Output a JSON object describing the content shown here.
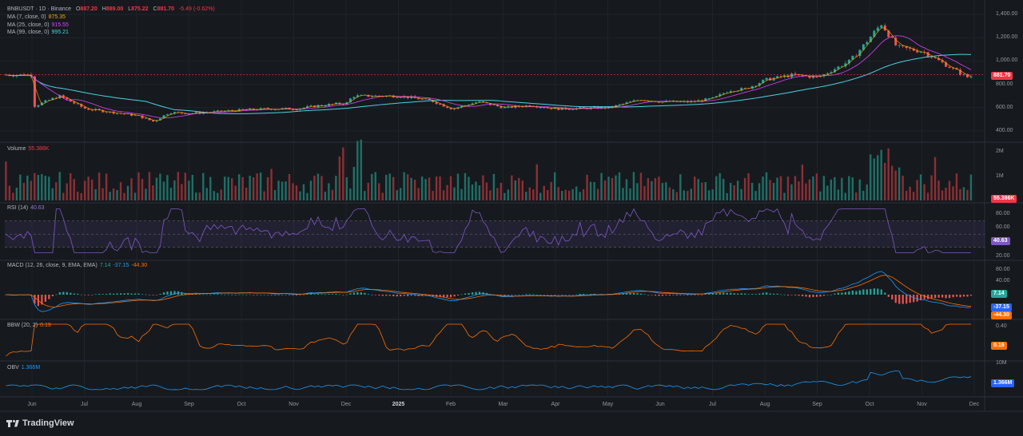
{
  "legend": {
    "symbol": "BNBUSDT · 1D · Binance",
    "ohlc": {
      "O": "887.20",
      "H": "889.00",
      "L": "875.22",
      "C": "881.70",
      "change": "-5.49 (-0.62%)"
    },
    "ma7": {
      "label": "MA (7, close, 0)",
      "value": "875.35",
      "color": "#f7a600"
    },
    "ma25": {
      "label": "MA (25, close, 0)",
      "value": "915.55",
      "color": "#e040fb"
    },
    "ma99": {
      "label": "MA (99, close, 0)",
      "value": "995.21",
      "color": "#4dd0e1"
    },
    "volume": {
      "label": "Volume",
      "value": "55.386K"
    },
    "rsi": {
      "label": "RSI (14)",
      "value": "40.63"
    },
    "macd": {
      "label": "MACD (12, 26, close, 9, EMA, EMA)",
      "v1": "7.14",
      "v2": "-37.15",
      "v3": "-44.30"
    },
    "bbw": {
      "label": "BBW (20, 2)",
      "value": "0.19"
    },
    "obv": {
      "label": "OBV",
      "value": "1.366M"
    }
  },
  "badges": {
    "price": "881.70",
    "volume": "55.386K",
    "rsi": "40.63",
    "macd_hist": "7.14",
    "macd_line": "-37.15",
    "macd_signal": "-44.30",
    "bbw": "0.19",
    "obv": "1.366M"
  },
  "axes": {
    "price_ticks": [
      "1,400.00",
      "1,200.00",
      "1,000.00",
      "800.00",
      "600.00",
      "400.00"
    ],
    "volume_ticks": [
      "2M",
      "1M"
    ],
    "rsi_ticks": [
      "80.00",
      "60.00",
      "20.00"
    ],
    "macd_ticks": [
      "80.00",
      "40.00"
    ],
    "bbw_ticks": [
      "0.40"
    ],
    "obv_ticks": [
      "10M"
    ],
    "x_ticks": [
      "Jun",
      "Jul",
      "Aug",
      "Sep",
      "Oct",
      "Nov",
      "Dec",
      "2025",
      "Feb",
      "Mar",
      "Apr",
      "May",
      "Jun",
      "Jul",
      "Aug",
      "Sep",
      "Oct",
      "Nov",
      "Dec"
    ]
  },
  "brand": "TradingView",
  "chart_data": {
    "type": "candlestick",
    "symbol": "BNBUSDT",
    "interval": "1D",
    "price_range": [
      400,
      1400
    ],
    "price_path": [
      {
        "m": 0,
        "p": 610
      },
      {
        "m": 0.5,
        "p": 700
      },
      {
        "m": 1,
        "p": 590
      },
      {
        "m": 1.5,
        "p": 560
      },
      {
        "m": 2,
        "p": 530
      },
      {
        "m": 2.3,
        "p": 480
      },
      {
        "m": 2.6,
        "p": 560
      },
      {
        "m": 3,
        "p": 550
      },
      {
        "m": 3.5,
        "p": 565
      },
      {
        "m": 4,
        "p": 580
      },
      {
        "m": 4.5,
        "p": 590
      },
      {
        "m": 5,
        "p": 590
      },
      {
        "m": 5.5,
        "p": 620
      },
      {
        "m": 6,
        "p": 640
      },
      {
        "m": 6.1,
        "p": 700
      },
      {
        "m": 6.5,
        "p": 700
      },
      {
        "m": 7,
        "p": 700
      },
      {
        "m": 7.6,
        "p": 660
      },
      {
        "m": 8,
        "p": 590
      },
      {
        "m": 8.5,
        "p": 650
      },
      {
        "m": 9,
        "p": 600
      },
      {
        "m": 9.5,
        "p": 620
      },
      {
        "m": 10,
        "p": 590
      },
      {
        "m": 10.5,
        "p": 595
      },
      {
        "m": 11,
        "p": 600
      },
      {
        "m": 11.6,
        "p": 670
      },
      {
        "m": 12,
        "p": 650
      },
      {
        "m": 12.6,
        "p": 650
      },
      {
        "m": 13,
        "p": 680
      },
      {
        "m": 13.3,
        "p": 750
      },
      {
        "m": 13.6,
        "p": 760
      },
      {
        "m": 14,
        "p": 840
      },
      {
        "m": 14.5,
        "p": 880
      },
      {
        "m": 15,
        "p": 860
      },
      {
        "m": 15.6,
        "p": 1000
      },
      {
        "m": 15.8,
        "p": 1100
      },
      {
        "m": 16.2,
        "p": 1320
      },
      {
        "m": 16.5,
        "p": 1120
      },
      {
        "m": 17,
        "p": 1080
      },
      {
        "m": 17.5,
        "p": 950
      },
      {
        "m": 17.85,
        "p": 860
      },
      {
        "m": 18,
        "p": 881.7
      }
    ],
    "rsi_levels": [
      70,
      50,
      30
    ],
    "indicators": [
      "MA 7",
      "MA 25",
      "MA 99",
      "Volume",
      "RSI 14",
      "MACD 12 26 9",
      "BBW 20 2",
      "OBV"
    ]
  }
}
